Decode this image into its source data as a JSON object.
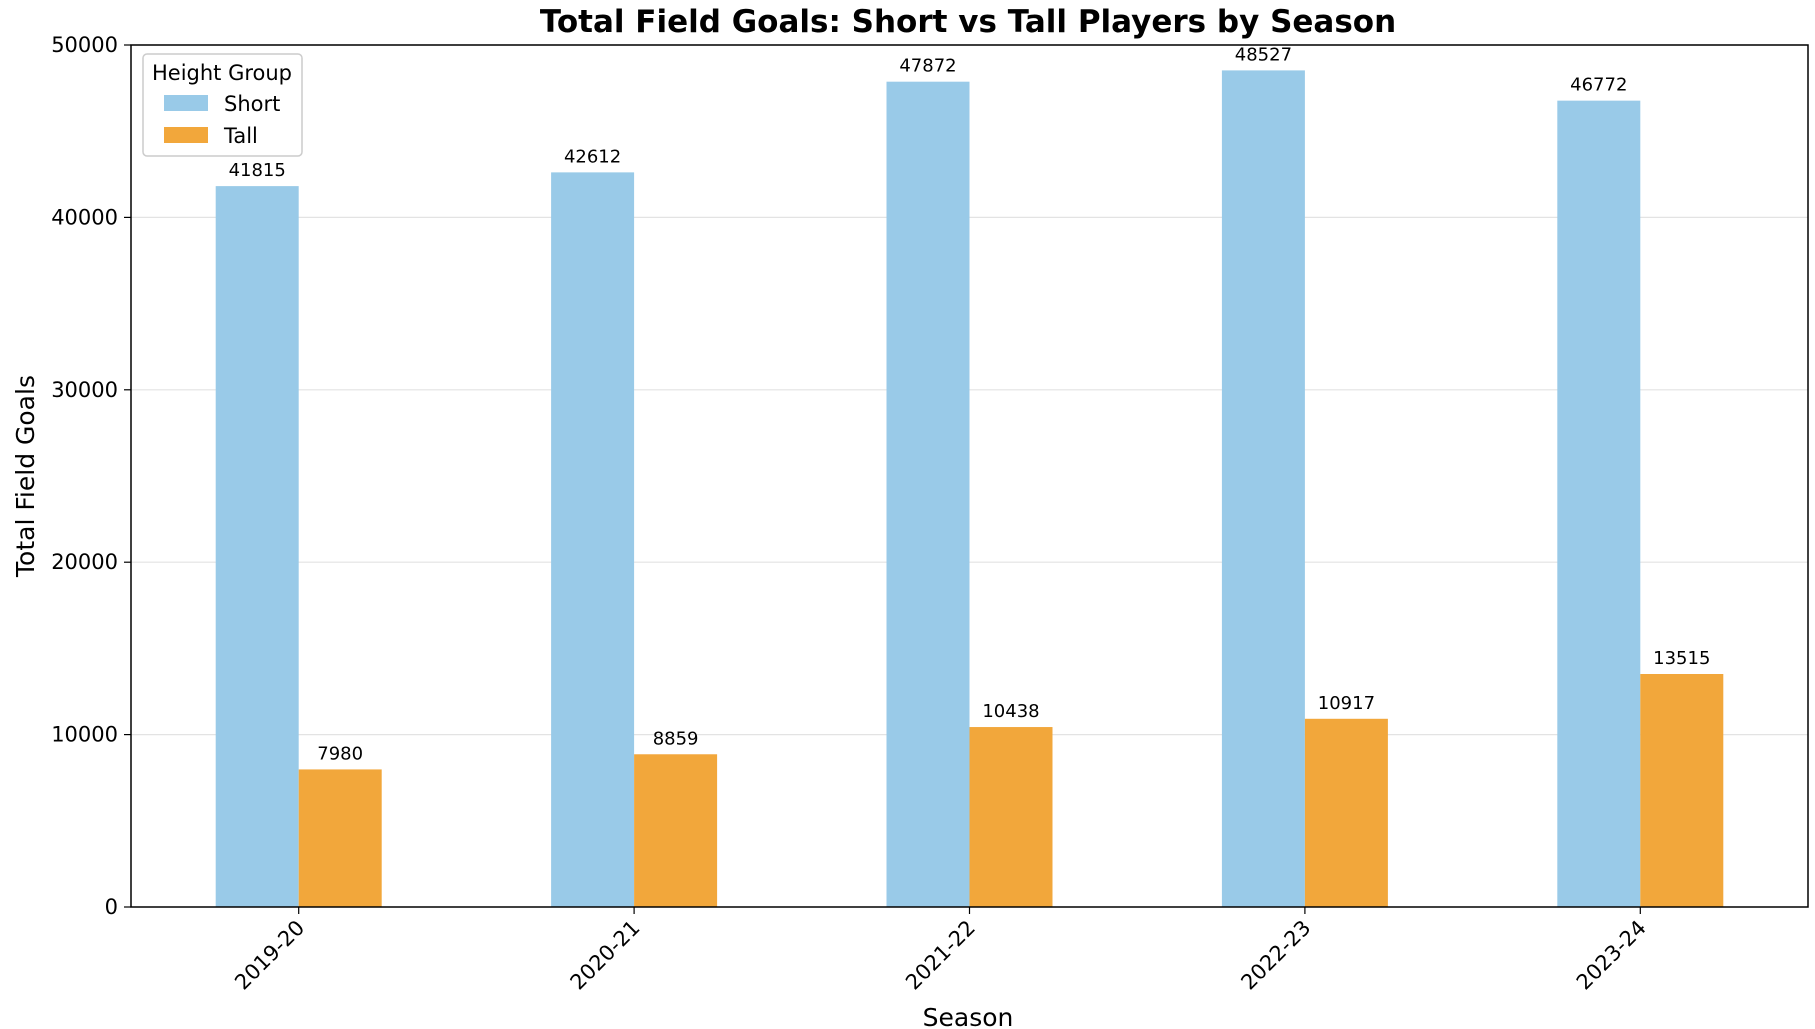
{
  "chart_data": {
    "type": "bar",
    "title": "Total Field Goals: Short vs Tall Players by Season",
    "xlabel": "Season",
    "ylabel": "Total Field Goals",
    "categories": [
      "2019-20",
      "2020-21",
      "2021-22",
      "2022-23",
      "2023-24"
    ],
    "series": [
      {
        "name": "Short",
        "color": "#99cae8",
        "values": [
          41815,
          42612,
          47872,
          48527,
          46772
        ]
      },
      {
        "name": "Tall",
        "color": "#f2a73b",
        "values": [
          7980,
          8859,
          10438,
          10917,
          13515
        ]
      }
    ],
    "ylim": [
      0,
      50000
    ],
    "yticks": [
      0,
      10000,
      20000,
      30000,
      40000,
      50000
    ],
    "ytick_labels": [
      "0",
      "10000",
      "20000",
      "30000",
      "40000",
      "50000"
    ],
    "grid": "y",
    "legend": {
      "title": "Height Group",
      "placement": "top-left"
    }
  }
}
